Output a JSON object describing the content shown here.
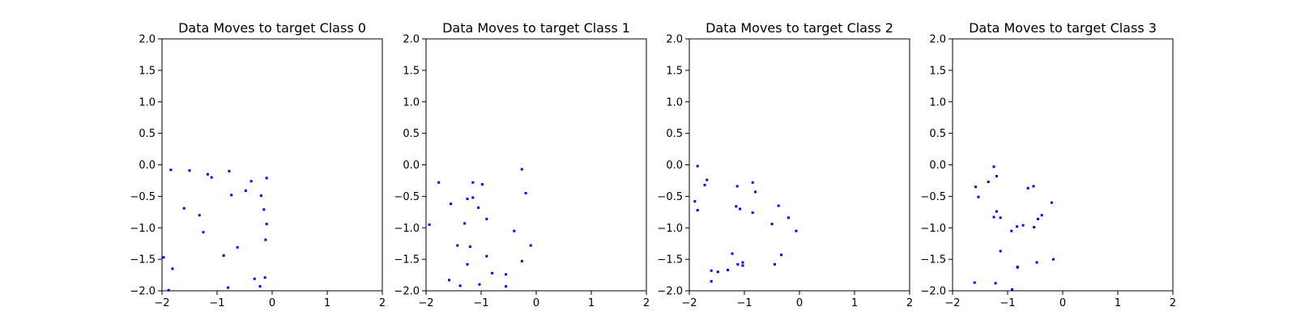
{
  "chart_data": [
    {
      "type": "scatter",
      "title": "Data Moves to target Class 0",
      "xlabel": "",
      "ylabel": "",
      "xlim": [
        -2,
        2
      ],
      "ylim": [
        -2,
        2
      ],
      "xticks": [
        "−2",
        "−1",
        "0",
        "1",
        "2"
      ],
      "yticks": [
        "2.0",
        "1.5",
        "1.0",
        "0.5",
        "0.0",
        "−0.5",
        "−1.0",
        "−1.5",
        "−2.0"
      ],
      "grid": false,
      "color": "#0000ff",
      "points": [
        {
          "x": -1.84,
          "y": -0.08
        },
        {
          "x": -1.5,
          "y": -0.09
        },
        {
          "x": -1.17,
          "y": -0.15
        },
        {
          "x": -1.1,
          "y": -0.2
        },
        {
          "x": -0.78,
          "y": -0.1
        },
        {
          "x": -0.38,
          "y": -0.26
        },
        {
          "x": -0.1,
          "y": -0.21
        },
        {
          "x": -0.74,
          "y": -0.48
        },
        {
          "x": -0.48,
          "y": -0.41
        },
        {
          "x": -0.2,
          "y": -0.49
        },
        {
          "x": -1.6,
          "y": -0.69
        },
        {
          "x": -1.32,
          "y": -0.8
        },
        {
          "x": -0.15,
          "y": -0.71
        },
        {
          "x": -0.1,
          "y": -0.94
        },
        {
          "x": -1.25,
          "y": -1.07
        },
        {
          "x": -0.12,
          "y": -1.19
        },
        {
          "x": -0.63,
          "y": -1.31
        },
        {
          "x": -0.88,
          "y": -1.44
        },
        {
          "x": -1.97,
          "y": -1.47
        },
        {
          "x": -1.81,
          "y": -1.65
        },
        {
          "x": -0.32,
          "y": -1.81
        },
        {
          "x": -0.13,
          "y": -1.79
        },
        {
          "x": -0.8,
          "y": -1.95
        },
        {
          "x": -0.22,
          "y": -1.93
        },
        {
          "x": -1.88,
          "y": -1.99
        }
      ]
    },
    {
      "type": "scatter",
      "title": "Data Moves to target Class 1",
      "xlabel": "",
      "ylabel": "",
      "xlim": [
        -2,
        2
      ],
      "ylim": [
        -2,
        2
      ],
      "xticks": [
        "−2",
        "−1",
        "0",
        "1",
        "2"
      ],
      "yticks": [
        "2.0",
        "1.5",
        "1.0",
        "0.5",
        "0.0",
        "−0.5",
        "−1.0",
        "−1.5",
        "−2.0"
      ],
      "grid": false,
      "color": "#0000ff",
      "points": [
        {
          "x": -1.77,
          "y": -0.28
        },
        {
          "x": -1.15,
          "y": -0.28
        },
        {
          "x": -0.98,
          "y": -0.31
        },
        {
          "x": -0.26,
          "y": -0.07
        },
        {
          "x": -0.19,
          "y": -0.45
        },
        {
          "x": -1.25,
          "y": -0.54
        },
        {
          "x": -1.15,
          "y": -0.52
        },
        {
          "x": -1.55,
          "y": -0.62
        },
        {
          "x": -1.05,
          "y": -0.68
        },
        {
          "x": -0.9,
          "y": -0.86
        },
        {
          "x": -1.94,
          "y": -0.95
        },
        {
          "x": -1.3,
          "y": -0.93
        },
        {
          "x": -0.4,
          "y": -1.05
        },
        {
          "x": -1.43,
          "y": -1.28
        },
        {
          "x": -1.2,
          "y": -1.3
        },
        {
          "x": -0.1,
          "y": -1.28
        },
        {
          "x": -0.9,
          "y": -1.45
        },
        {
          "x": -0.26,
          "y": -1.53
        },
        {
          "x": -1.25,
          "y": -1.58
        },
        {
          "x": -0.8,
          "y": -1.72
        },
        {
          "x": -0.55,
          "y": -1.74
        },
        {
          "x": -1.58,
          "y": -1.83
        },
        {
          "x": -1.38,
          "y": -1.92
        },
        {
          "x": -1.03,
          "y": -1.9
        },
        {
          "x": -0.55,
          "y": -1.93
        }
      ]
    },
    {
      "type": "scatter",
      "title": "Data Moves to target Class 2",
      "xlabel": "",
      "ylabel": "",
      "xlim": [
        -2,
        2
      ],
      "ylim": [
        -2,
        2
      ],
      "xticks": [
        "−2",
        "−1",
        "0",
        "1",
        "2"
      ],
      "yticks": [
        "2.0",
        "1.5",
        "1.0",
        "0.5",
        "0.0",
        "−0.5",
        "−1.0",
        "−1.5",
        "−2.0"
      ],
      "grid": false,
      "color": "#0000ff",
      "points": [
        {
          "x": -1.85,
          "y": -0.02
        },
        {
          "x": -1.68,
          "y": -0.24
        },
        {
          "x": -1.72,
          "y": -0.32
        },
        {
          "x": -1.13,
          "y": -0.34
        },
        {
          "x": -0.85,
          "y": -0.28
        },
        {
          "x": -0.8,
          "y": -0.43
        },
        {
          "x": -1.9,
          "y": -0.58
        },
        {
          "x": -1.85,
          "y": -0.72
        },
        {
          "x": -1.15,
          "y": -0.66
        },
        {
          "x": -1.08,
          "y": -0.7
        },
        {
          "x": -0.85,
          "y": -0.76
        },
        {
          "x": -0.38,
          "y": -0.65
        },
        {
          "x": -0.2,
          "y": -0.84
        },
        {
          "x": -0.5,
          "y": -0.94
        },
        {
          "x": -0.06,
          "y": -1.05
        },
        {
          "x": -1.22,
          "y": -1.41
        },
        {
          "x": -0.33,
          "y": -1.43
        },
        {
          "x": -1.12,
          "y": -1.58
        },
        {
          "x": -1.03,
          "y": -1.55
        },
        {
          "x": -1.03,
          "y": -1.6
        },
        {
          "x": -0.45,
          "y": -1.58
        },
        {
          "x": -1.6,
          "y": -1.68
        },
        {
          "x": -1.48,
          "y": -1.7
        },
        {
          "x": -1.3,
          "y": -1.67
        },
        {
          "x": -1.6,
          "y": -1.85
        }
      ]
    },
    {
      "type": "scatter",
      "title": "Data Moves to target Class 3",
      "xlabel": "",
      "ylabel": "",
      "xlim": [
        -2,
        2
      ],
      "ylim": [
        -2,
        2
      ],
      "xticks": [
        "−2",
        "−1",
        "0",
        "1",
        "2"
      ],
      "yticks": [
        "2.0",
        "1.5",
        "1.0",
        "0.5",
        "0.0",
        "−0.5",
        "−1.0",
        "−1.5",
        "−2.0"
      ],
      "grid": false,
      "color": "#0000ff",
      "points": [
        {
          "x": -1.25,
          "y": -0.03
        },
        {
          "x": -1.2,
          "y": -0.18
        },
        {
          "x": -1.35,
          "y": -0.27
        },
        {
          "x": -1.58,
          "y": -0.35
        },
        {
          "x": -1.53,
          "y": -0.51
        },
        {
          "x": -0.63,
          "y": -0.37
        },
        {
          "x": -0.53,
          "y": -0.34
        },
        {
          "x": -0.2,
          "y": -0.6
        },
        {
          "x": -0.45,
          "y": -0.86
        },
        {
          "x": -0.38,
          "y": -0.8
        },
        {
          "x": -1.2,
          "y": -0.74
        },
        {
          "x": -1.25,
          "y": -0.83
        },
        {
          "x": -1.13,
          "y": -0.84
        },
        {
          "x": -0.83,
          "y": -0.98
        },
        {
          "x": -0.72,
          "y": -0.96
        },
        {
          "x": -0.52,
          "y": -0.99
        },
        {
          "x": -0.93,
          "y": -1.05
        },
        {
          "x": -1.13,
          "y": -1.37
        },
        {
          "x": -0.17,
          "y": -1.5
        },
        {
          "x": -0.47,
          "y": -1.55
        },
        {
          "x": -0.82,
          "y": -1.63
        },
        {
          "x": -0.82,
          "y": -1.62
        },
        {
          "x": -1.22,
          "y": -1.88
        },
        {
          "x": -1.6,
          "y": -1.87
        },
        {
          "x": -0.92,
          "y": -1.98
        }
      ]
    }
  ]
}
